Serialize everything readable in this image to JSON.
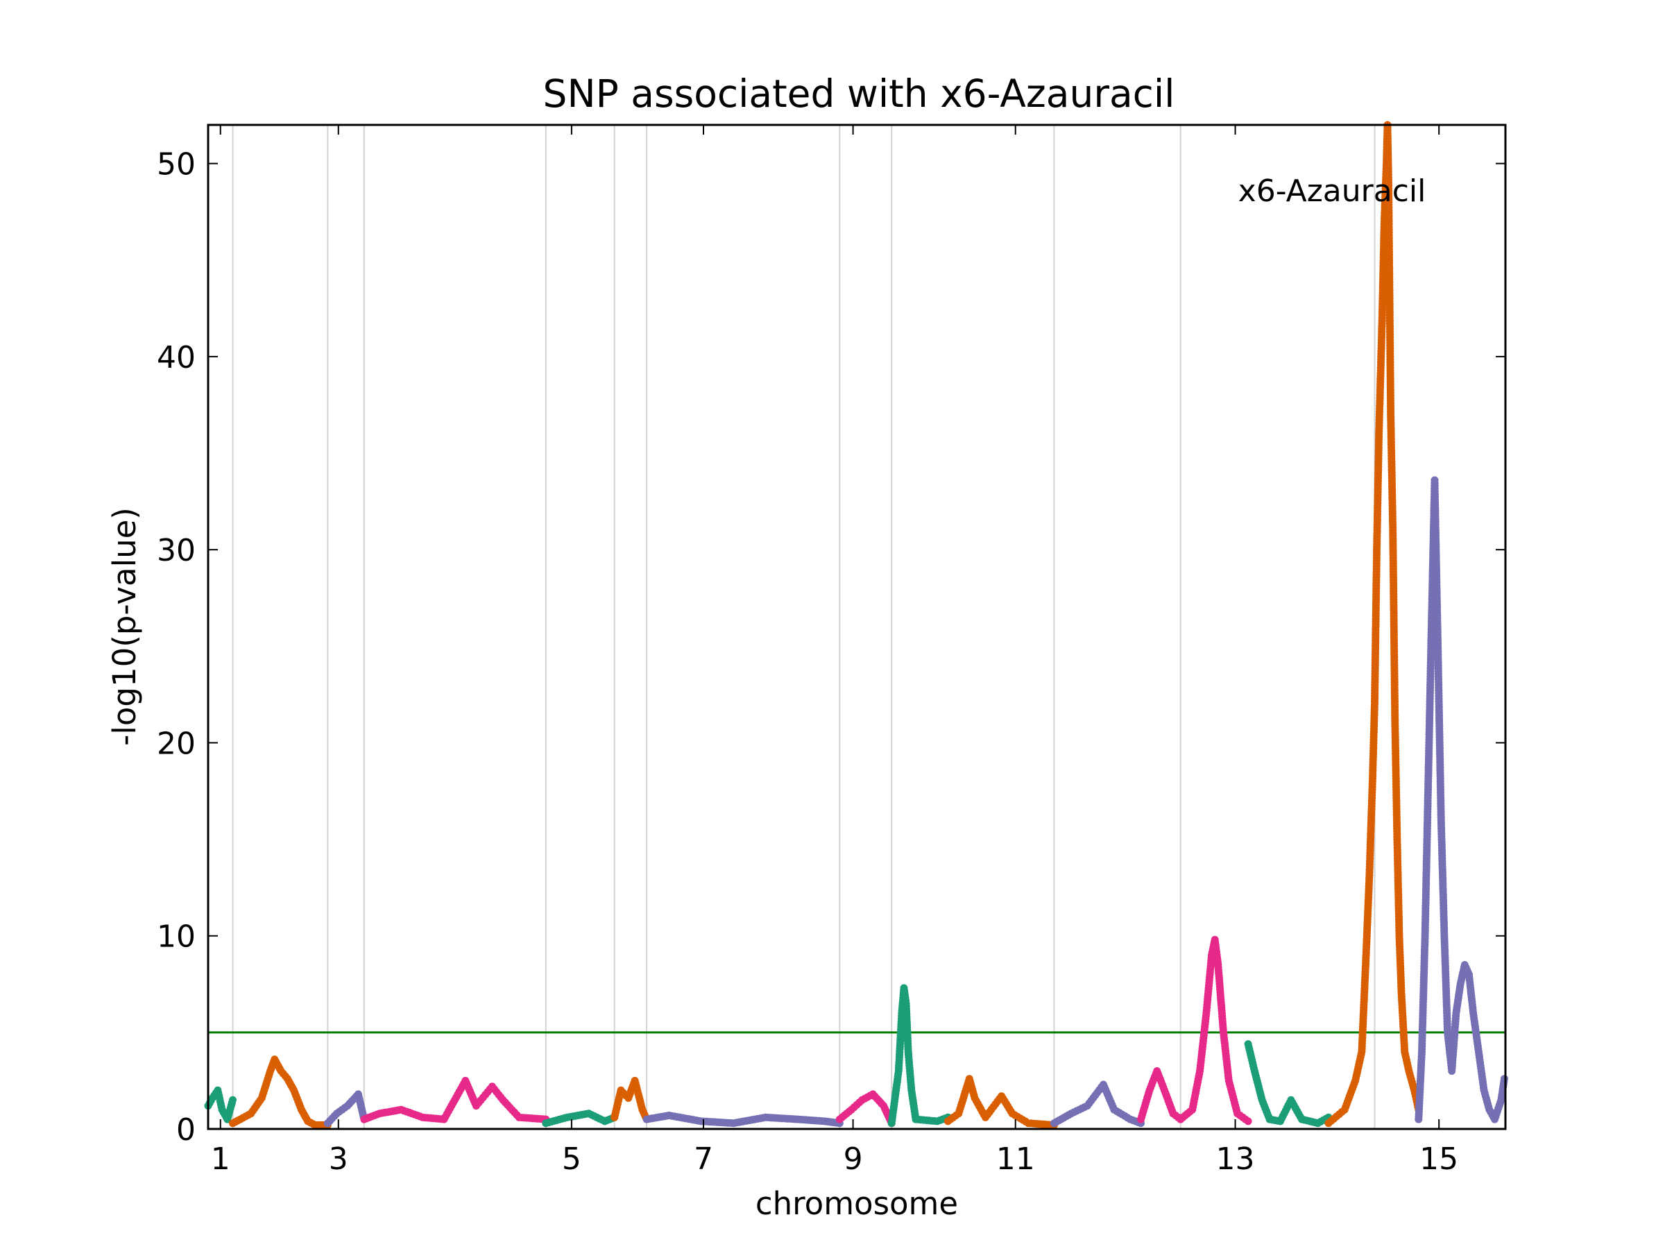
{
  "chart_data": {
    "type": "scatter",
    "title": "SNP associated with x6-Azauracil",
    "xlabel": "chromosome",
    "ylabel": "-log10(p-value)",
    "annotation": "x6-Azauracil",
    "xlim": [
      0,
      12100
    ],
    "ylim": [
      0,
      52
    ],
    "yticks": [
      0,
      10,
      20,
      30,
      40,
      50
    ],
    "xticks": [
      {
        "label": "1",
        "x": 115
      },
      {
        "label": "3",
        "x": 1215
      },
      {
        "label": "5",
        "x": 3390
      },
      {
        "label": "7",
        "x": 4620
      },
      {
        "label": "9",
        "x": 6015
      },
      {
        "label": "11",
        "x": 7530
      },
      {
        "label": "13",
        "x": 9580
      },
      {
        "label": "15",
        "x": 11480
      }
    ],
    "chromosome_boundaries": [
      230,
      1115,
      1455,
      3150,
      3790,
      4090,
      5890,
      6375,
      7890,
      9070,
      10880
    ],
    "threshold": 5,
    "grid": "vertical",
    "colors": {
      "series": [
        "#1b9e77",
        "#d95f02",
        "#7570b3",
        "#e7298a"
      ],
      "threshold": "#008000",
      "grid": "#d3d3d3"
    },
    "series": [
      {
        "color": "#1b9e77",
        "points": [
          [
            0,
            1.2
          ],
          [
            40,
            1.6
          ],
          [
            90,
            2.0
          ],
          [
            130,
            1.0
          ],
          [
            180,
            0.5
          ],
          [
            230,
            1.5
          ]
        ]
      },
      {
        "color": "#d95f02",
        "points": [
          [
            230,
            0.3
          ],
          [
            300,
            0.5
          ],
          [
            400,
            0.8
          ],
          [
            500,
            1.6
          ],
          [
            580,
            3.0
          ],
          [
            620,
            3.6
          ],
          [
            680,
            3.0
          ],
          [
            740,
            2.6
          ],
          [
            800,
            2.0
          ],
          [
            870,
            1.0
          ],
          [
            930,
            0.4
          ],
          [
            1000,
            0.2
          ],
          [
            1115,
            0.2
          ]
        ]
      },
      {
        "color": "#7570b3",
        "points": [
          [
            1115,
            0.3
          ],
          [
            1200,
            0.8
          ],
          [
            1300,
            1.2
          ],
          [
            1400,
            1.8
          ],
          [
            1455,
            0.5
          ]
        ]
      },
      {
        "color": "#e7298a",
        "points": [
          [
            1455,
            0.5
          ],
          [
            1600,
            0.8
          ],
          [
            1800,
            1.0
          ],
          [
            2000,
            0.6
          ],
          [
            2200,
            0.5
          ],
          [
            2300,
            1.5
          ],
          [
            2400,
            2.5
          ],
          [
            2500,
            1.2
          ],
          [
            2650,
            2.2
          ],
          [
            2750,
            1.5
          ],
          [
            2900,
            0.6
          ],
          [
            3150,
            0.5
          ]
        ]
      },
      {
        "color": "#1b9e77",
        "points": [
          [
            3150,
            0.3
          ],
          [
            3350,
            0.6
          ],
          [
            3550,
            0.8
          ],
          [
            3700,
            0.4
          ],
          [
            3790,
            0.6
          ]
        ]
      },
      {
        "color": "#d95f02",
        "points": [
          [
            3790,
            0.6
          ],
          [
            3850,
            2.0
          ],
          [
            3920,
            1.6
          ],
          [
            3980,
            2.5
          ],
          [
            4050,
            1.0
          ],
          [
            4090,
            0.5
          ]
        ]
      },
      {
        "color": "#7570b3",
        "points": [
          [
            4090,
            0.5
          ],
          [
            4300,
            0.7
          ],
          [
            4600,
            0.4
          ],
          [
            4900,
            0.3
          ],
          [
            5200,
            0.6
          ],
          [
            5500,
            0.5
          ],
          [
            5750,
            0.4
          ],
          [
            5890,
            0.3
          ]
        ]
      },
      {
        "color": "#e7298a",
        "points": [
          [
            5890,
            0.5
          ],
          [
            6000,
            1.0
          ],
          [
            6100,
            1.5
          ],
          [
            6200,
            1.8
          ],
          [
            6300,
            1.2
          ],
          [
            6375,
            0.3
          ]
        ]
      },
      {
        "color": "#1b9e77",
        "points": [
          [
            6375,
            0.3
          ],
          [
            6440,
            3.0
          ],
          [
            6470,
            6.0
          ],
          [
            6490,
            7.3
          ],
          [
            6510,
            6.5
          ],
          [
            6530,
            4.0
          ],
          [
            6560,
            2.0
          ],
          [
            6600,
            0.5
          ],
          [
            6800,
            0.4
          ],
          [
            6900,
            0.6
          ]
        ]
      },
      {
        "color": "#d95f02",
        "points": [
          [
            6900,
            0.4
          ],
          [
            7000,
            0.8
          ],
          [
            7100,
            2.6
          ],
          [
            7150,
            1.6
          ],
          [
            7250,
            0.6
          ],
          [
            7400,
            1.7
          ],
          [
            7500,
            0.8
          ],
          [
            7650,
            0.3
          ],
          [
            7890,
            0.2
          ]
        ]
      },
      {
        "color": "#7570b3",
        "points": [
          [
            7890,
            0.3
          ],
          [
            8050,
            0.8
          ],
          [
            8200,
            1.2
          ],
          [
            8350,
            2.3
          ],
          [
            8450,
            1.0
          ],
          [
            8600,
            0.5
          ],
          [
            8700,
            0.3
          ]
        ]
      },
      {
        "color": "#e7298a",
        "points": [
          [
            8700,
            0.5
          ],
          [
            8780,
            2.0
          ],
          [
            8850,
            3.0
          ],
          [
            8920,
            2.0
          ],
          [
            9000,
            0.8
          ],
          [
            9070,
            0.5
          ]
        ]
      },
      {
        "color": "#e7298a",
        "points": [
          [
            9070,
            0.5
          ],
          [
            9180,
            1.0
          ],
          [
            9250,
            3.0
          ],
          [
            9310,
            6.0
          ],
          [
            9360,
            9.0
          ],
          [
            9390,
            9.8
          ],
          [
            9420,
            8.5
          ],
          [
            9470,
            5.0
          ],
          [
            9520,
            2.5
          ],
          [
            9600,
            0.8
          ],
          [
            9700,
            0.4
          ]
        ]
      },
      {
        "color": "#1b9e77",
        "points": [
          [
            9700,
            4.4
          ],
          [
            9760,
            3.0
          ],
          [
            9830,
            1.5
          ],
          [
            9900,
            0.5
          ],
          [
            10000,
            0.4
          ],
          [
            10100,
            1.5
          ],
          [
            10200,
            0.5
          ],
          [
            10350,
            0.3
          ],
          [
            10450,
            0.6
          ]
        ]
      },
      {
        "color": "#d95f02",
        "points": [
          [
            10450,
            0.3
          ],
          [
            10600,
            1.0
          ],
          [
            10700,
            2.5
          ],
          [
            10760,
            4.0
          ],
          [
            10800,
            9.0
          ],
          [
            10830,
            13.0
          ],
          [
            10860,
            18.0
          ],
          [
            10880,
            22.0
          ],
          [
            10900,
            30.0
          ],
          [
            10920,
            36.0
          ],
          [
            10950,
            42.0
          ],
          [
            10970,
            47.0
          ],
          [
            10990,
            50.0
          ],
          [
            11000,
            52.0
          ],
          [
            11010,
            49.0
          ],
          [
            11030,
            37.0
          ],
          [
            11050,
            31.0
          ],
          [
            11070,
            21.0
          ],
          [
            11090,
            15.0
          ],
          [
            11110,
            10.0
          ],
          [
            11130,
            7.0
          ],
          [
            11160,
            4.0
          ],
          [
            11200,
            3.0
          ],
          [
            11250,
            2.0
          ],
          [
            11290,
            1.0
          ]
        ]
      },
      {
        "color": "#7570b3",
        "points": [
          [
            11290,
            0.5
          ],
          [
            11320,
            4.0
          ],
          [
            11350,
            10.0
          ],
          [
            11380,
            18.0
          ],
          [
            11410,
            26.0
          ],
          [
            11440,
            33.6
          ],
          [
            11470,
            25.0
          ],
          [
            11500,
            16.0
          ],
          [
            11530,
            10.0
          ],
          [
            11560,
            5.0
          ],
          [
            11600,
            3.0
          ],
          [
            11640,
            6.0
          ],
          [
            11680,
            7.5
          ],
          [
            11720,
            8.5
          ],
          [
            11760,
            8.0
          ],
          [
            11800,
            6.0
          ],
          [
            11850,
            4.0
          ],
          [
            11900,
            2.0
          ],
          [
            11950,
            1.0
          ],
          [
            12000,
            0.5
          ],
          [
            12060,
            1.5
          ],
          [
            12090,
            2.6
          ]
        ]
      }
    ]
  }
}
